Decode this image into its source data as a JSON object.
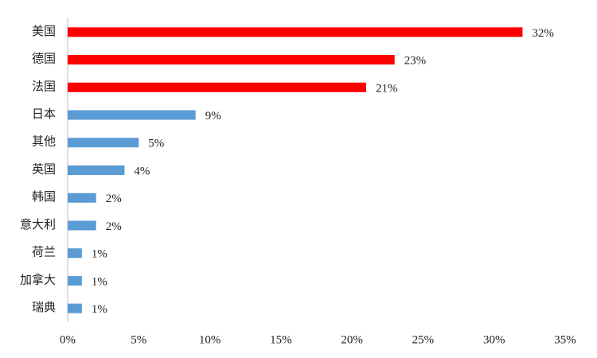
{
  "chart_data": {
    "type": "barh",
    "categories": [
      "美国",
      "德国",
      "法国",
      "日本",
      "其他",
      "英国",
      "韩国",
      "意大利",
      "荷兰",
      "加拿大",
      "瑞典"
    ],
    "values": [
      32,
      23,
      21,
      9,
      5,
      4,
      2,
      2,
      1,
      1,
      1
    ],
    "value_labels": [
      "32%",
      "23%",
      "21%",
      "9%",
      "5%",
      "4%",
      "2%",
      "2%",
      "1%",
      "1%",
      "1%"
    ],
    "colors": [
      "#ff0000",
      "#ff0000",
      "#ff0000",
      "#5b9bd5",
      "#5b9bd5",
      "#5b9bd5",
      "#5b9bd5",
      "#5b9bd5",
      "#5b9bd5",
      "#5b9bd5",
      "#5b9bd5"
    ],
    "xlim": [
      0,
      35
    ],
    "xticks": [
      {
        "value": 0,
        "label": "0%"
      },
      {
        "value": 5,
        "label": "5%"
      },
      {
        "value": 10,
        "label": "10%"
      },
      {
        "value": 15,
        "label": "15%"
      },
      {
        "value": 20,
        "label": "20%"
      },
      {
        "value": 25,
        "label": "25%"
      },
      {
        "value": 30,
        "label": "30%"
      },
      {
        "value": 35,
        "label": "35%"
      }
    ],
    "grid": false
  }
}
